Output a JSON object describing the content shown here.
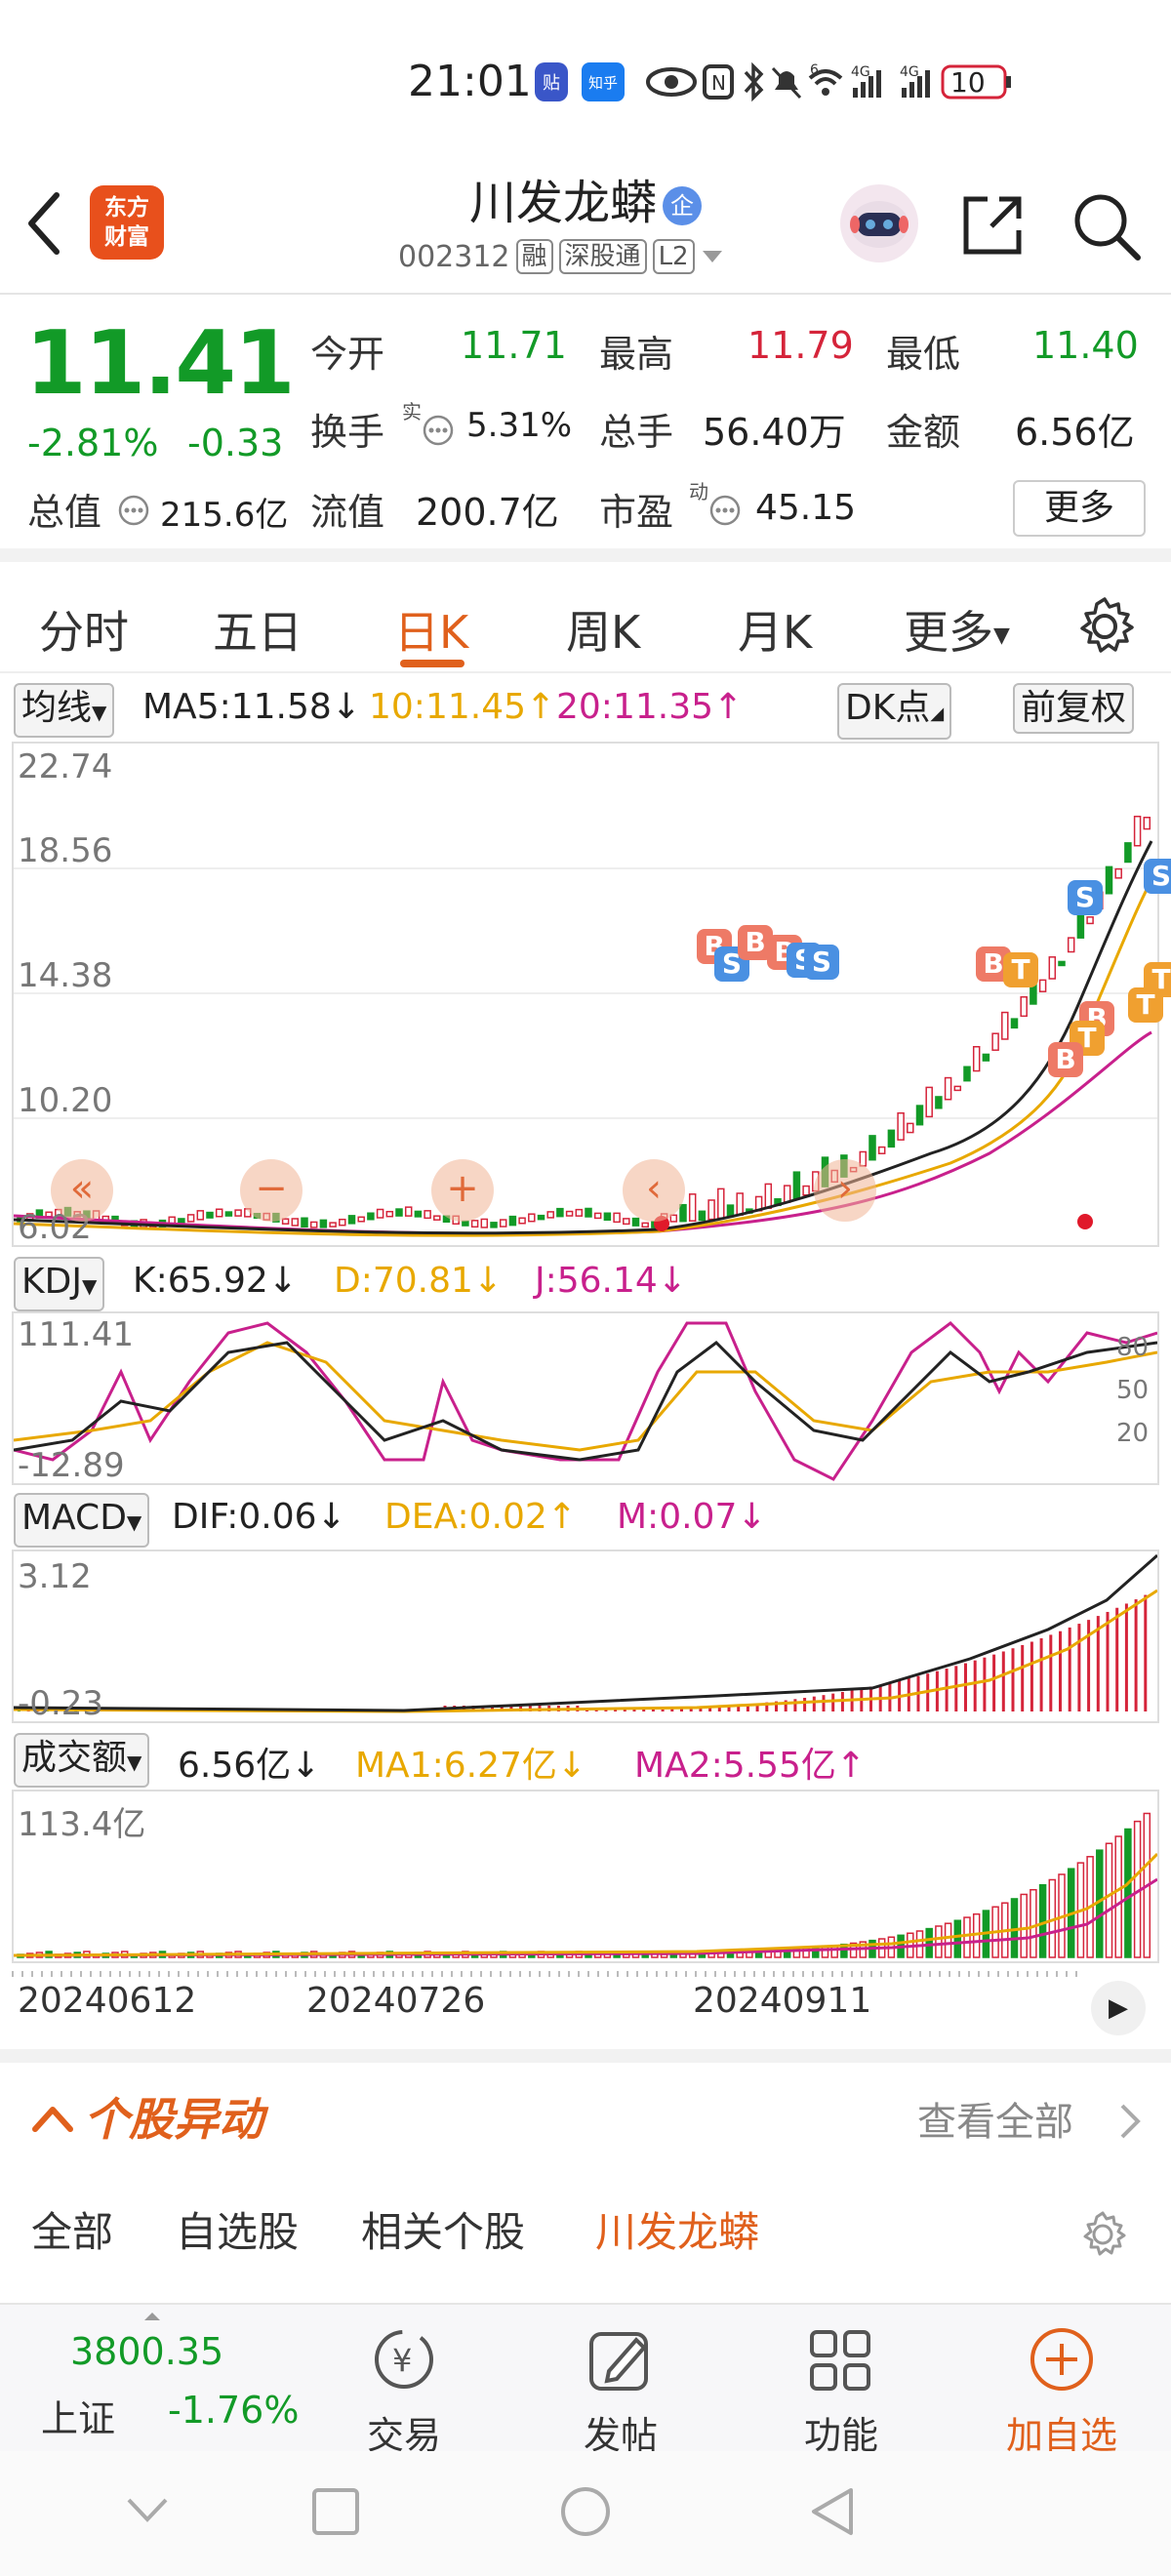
{
  "status_bar": {
    "time": "21:01",
    "app_badges": [
      "贴",
      "知乎"
    ],
    "battery": "10"
  },
  "header": {
    "logo_text": [
      "东方",
      "财富"
    ],
    "stock_name": "川发龙蟒",
    "code": "002312",
    "tags": [
      "融",
      "深股通",
      "L2"
    ],
    "ent_badge": "企"
  },
  "quote": {
    "price": "11.41",
    "change_pct": "-2.81%",
    "change": "-0.33",
    "rows": [
      [
        {
          "label": "今开",
          "value": "11.71",
          "color": "green"
        },
        {
          "label": "最高",
          "value": "11.79",
          "color": "red"
        },
        {
          "label": "最低",
          "value": "11.40",
          "color": "green"
        }
      ],
      [
        {
          "label": "换手",
          "sup": "实",
          "value": "5.31%"
        },
        {
          "label": "总手",
          "value": "56.40万"
        },
        {
          "label": "金额",
          "value": "6.56亿"
        }
      ],
      [
        {
          "label": "总值",
          "value": "215.6亿"
        },
        {
          "label": "流值",
          "value": "200.7亿"
        },
        {
          "label": "市盈",
          "sup": "动",
          "value": "45.15"
        }
      ]
    ],
    "more_button": "更多"
  },
  "tabs": [
    "分时",
    "五日",
    "日K",
    "周K",
    "月K",
    "更多"
  ],
  "active_tab": "日K",
  "ma_line": {
    "selector": "均线",
    "ma5": "MA5:11.58↓",
    "ma10": "10:11.45↑",
    "ma20": "20:11.35↑",
    "dk_button": "DK点",
    "fq_button": "前复权"
  },
  "colors": {
    "ma5": "#222222",
    "ma10": "#e8a800",
    "ma20": "#c8208c",
    "up": "#d5243a",
    "down": "#129a27",
    "accent": "#e0601c"
  },
  "kline_axis": [
    "22.74",
    "18.56",
    "14.38",
    "10.20",
    "6.02"
  ],
  "kline_markers": [
    {
      "t": "B",
      "c": "#ee7a66"
    },
    {
      "t": "S",
      "c": "#4a90e2"
    },
    {
      "t": "B",
      "c": "#ee7a66"
    },
    {
      "t": "B",
      "c": "#ee7a66"
    },
    {
      "t": "S",
      "c": "#4a90e2"
    },
    {
      "t": "S",
      "c": "#4a90e2"
    },
    {
      "t": "B",
      "c": "#ee7a66"
    },
    {
      "t": "T",
      "c": "#f0a030"
    },
    {
      "t": "S",
      "c": "#4a90e2"
    },
    {
      "t": "S",
      "c": "#4a90e2"
    },
    {
      "t": "T",
      "c": "#f0a030"
    },
    {
      "t": "T",
      "c": "#f0a030"
    },
    {
      "t": "B",
      "c": "#ee7a66"
    },
    {
      "t": "T",
      "c": "#f0a030"
    },
    {
      "t": "B",
      "c": "#ee7a66"
    }
  ],
  "chart_controls": [
    "«",
    "−",
    "+",
    "‹",
    "›"
  ],
  "kdj": {
    "selector": "KDJ",
    "k": "K:65.92↓",
    "d": "D:70.81↓",
    "j": "J:56.14↓",
    "axis": [
      "111.41",
      "-12.89"
    ],
    "levels": [
      "80",
      "50",
      "20"
    ]
  },
  "macd": {
    "selector": "MACD",
    "dif": "DIF:0.06↓",
    "dea": "DEA:0.02↑",
    "m": "M:0.07↓",
    "axis": [
      "3.12",
      "-0.23"
    ]
  },
  "volume": {
    "selector": "成交额",
    "value": "6.56亿↓",
    "ma1": "MA1:6.27亿↓",
    "ma2": "MA2:5.55亿↑",
    "axis": "113.4亿"
  },
  "dates": [
    "20240612",
    "20240726",
    "20240911"
  ],
  "alert": {
    "title": "个股异动",
    "view_all": "查看全部"
  },
  "subtabs": [
    "全部",
    "自选股",
    "相关个股",
    "川发龙蟒"
  ],
  "bottom": {
    "index_value": "3800.35",
    "index_name": "上证",
    "index_change": "-1.76%",
    "items": [
      "交易",
      "发帖",
      "功能",
      "加自选"
    ]
  }
}
